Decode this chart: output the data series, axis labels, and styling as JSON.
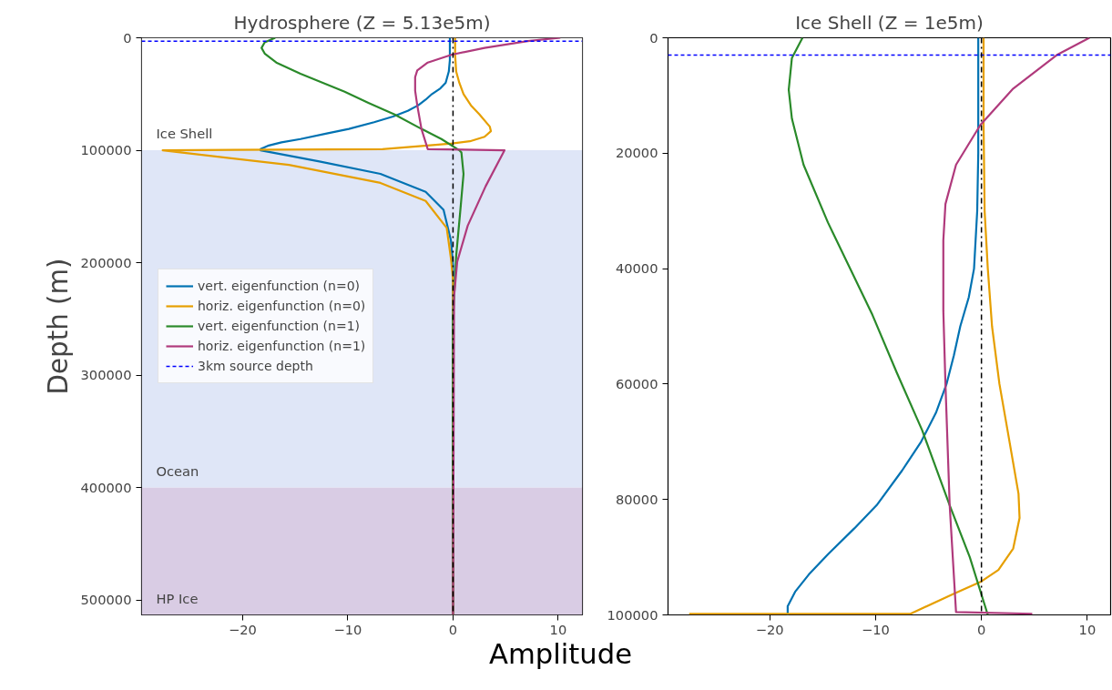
{
  "chart_data": [
    {
      "type": "line",
      "title": "Hydrosphere (Z = 5.13e5m)",
      "xlabel": "Amplitude",
      "ylabel": "Depth (m)",
      "xlim": [
        -29.6,
        12.3
      ],
      "ylim": [
        513000,
        0
      ],
      "xticks": [
        -20,
        -10,
        0,
        10
      ],
      "yticks": [
        0,
        100000,
        200000,
        300000,
        400000,
        500000
      ],
      "grid": false,
      "legend": "center left",
      "series": [
        {
          "name": "vert. eigenfunction (n=0)",
          "color": "#0072b2",
          "x": [
            -0.3,
            -0.3,
            -0.3,
            -0.4,
            -0.7,
            -1.2,
            -2.0,
            -2.6,
            -3.3,
            -4.3,
            -5.7,
            -7.5,
            -9.9,
            -12.0,
            -14.5,
            -16.3,
            -17.6,
            -18.3,
            -18.3,
            -12.7,
            -6.9,
            -2.6,
            -0.9,
            -0.2,
            0,
            0
          ],
          "values": [
            0,
            10000,
            20000,
            30000,
            40000,
            45000,
            50000,
            55000,
            60000,
            65000,
            70000,
            75000,
            81000,
            85000,
            90000,
            93000,
            96000,
            99000,
            100000,
            110000,
            121000,
            137000,
            153000,
            180000,
            202000,
            513000
          ]
        },
        {
          "name": "horiz. eigenfunction (n=0)",
          "color": "#e69f00",
          "x": [
            0.2,
            0.2,
            0.3,
            0.6,
            1.0,
            1.7,
            2.5,
            3.5,
            3.6,
            3.0,
            1.6,
            -0.1,
            -2.7,
            -6.7,
            -27.6,
            -15.6,
            -6.9,
            -2.6,
            -0.6,
            -0.2,
            0,
            0
          ],
          "values": [
            0,
            15000,
            30000,
            40000,
            50000,
            60000,
            68000,
            79000,
            83000,
            88000,
            92000,
            94000,
            96000,
            99000,
            100000,
            113000,
            129000,
            145000,
            169000,
            196000,
            215000,
            513000
          ]
        },
        {
          "name": "vert. eigenfunction (n=1)",
          "color": "#2a8a2a",
          "x": [
            -16.9,
            -17.9,
            -18.2,
            -17.9,
            -16.8,
            -14.5,
            -10.3,
            -8.0,
            -5.6,
            -3.0,
            -1.1,
            0.6,
            0.8,
            1.0,
            0.7,
            0.3,
            0,
            0
          ],
          "values": [
            0,
            4000,
            9000,
            14000,
            22000,
            32000,
            48000,
            58000,
            68000,
            81000,
            90000,
            100000,
            102000,
            121000,
            153000,
            194000,
            250000,
            513000
          ]
        },
        {
          "name": "horiz. eigenfunction (n=1)",
          "color": "#b03a7c",
          "x": [
            10.2,
            7.1,
            3.0,
            -0.1,
            -2.4,
            -3.4,
            -3.6,
            -3.6,
            -3.4,
            -3.0,
            -2.4,
            4.9,
            3.1,
            1.4,
            0.4,
            0.1,
            0
          ],
          "values": [
            0,
            3000,
            9000,
            15000,
            22000,
            29000,
            35000,
            47000,
            60000,
            81000,
            99000,
            100000,
            132000,
            167000,
            199000,
            230000,
            513000
          ]
        }
      ],
      "ref_lines": [
        {
          "axis": "y",
          "value": 3000,
          "label": "3km source depth",
          "color": "#0000ff",
          "line_style": "dashed"
        },
        {
          "axis": "x",
          "value": 0,
          "color": "#000000",
          "line_style": "dashdot"
        }
      ],
      "bands": [
        {
          "axis": "y",
          "from": 0,
          "to": 100000,
          "label": "Ice Shell",
          "color": "#ffffff"
        },
        {
          "axis": "y",
          "from": 100000,
          "to": 400000,
          "label": "Ocean",
          "color": "#dfe6f7"
        },
        {
          "axis": "y",
          "from": 400000,
          "to": 513000,
          "label": "HP Ice",
          "color": "#d9cce4"
        }
      ]
    },
    {
      "type": "line",
      "title": "Ice Shell (Z = 1e5m)",
      "xlim": [
        -29.6,
        12.2
      ],
      "ylim": [
        100000,
        0
      ],
      "xticks": [
        -20,
        -10,
        0,
        10
      ],
      "yticks": [
        0,
        20000,
        40000,
        60000,
        80000,
        100000
      ],
      "grid": false,
      "legend": false,
      "series": [
        {
          "color": "#0072b2",
          "x": [
            -0.3,
            -0.3,
            -0.3,
            -0.4,
            -0.7,
            -1.2,
            -2.0,
            -2.6,
            -3.3,
            -4.3,
            -5.7,
            -7.5,
            -9.9,
            -12.0,
            -14.5,
            -16.3,
            -17.6,
            -18.3,
            -18.3
          ],
          "values": [
            0,
            10000,
            20000,
            30000,
            40000,
            45000,
            50000,
            55000,
            60000,
            65000,
            70000,
            75000,
            81000,
            85000,
            89500,
            93000,
            96000,
            98500,
            100000
          ]
        },
        {
          "color": "#e69f00",
          "x": [
            0.2,
            0.2,
            0.3,
            0.6,
            1.0,
            1.7,
            2.5,
            3.5,
            3.6,
            3.0,
            1.6,
            -0.1,
            -2.7,
            -6.7,
            -27.6
          ],
          "values": [
            0,
            15000,
            30000,
            40000,
            50000,
            60000,
            68400,
            79000,
            83200,
            88500,
            92200,
            94300,
            96400,
            99800,
            99800
          ]
        },
        {
          "color": "#2a8a2a",
          "x": [
            -16.9,
            -17.9,
            -18.2,
            -17.9,
            -16.8,
            -14.5,
            -10.3,
            -8.0,
            -5.6,
            -3.0,
            -1.1,
            0.6
          ],
          "values": [
            0,
            3500,
            9000,
            14000,
            22000,
            32000,
            48000,
            58000,
            68000,
            81000,
            90000,
            100000
          ]
        },
        {
          "color": "#b03a7c",
          "x": [
            10.2,
            7.1,
            3.0,
            -0.1,
            -2.4,
            -3.4,
            -3.6,
            -3.6,
            -3.4,
            -3.0,
            -2.4,
            4.8
          ],
          "values": [
            0,
            3000,
            8800,
            15100,
            22000,
            28800,
            35100,
            47300,
            60000,
            81000,
            99500,
            99800
          ]
        }
      ],
      "ref_lines": [
        {
          "axis": "y",
          "value": 3000,
          "color": "#0000ff",
          "line_style": "dashed"
        },
        {
          "axis": "x",
          "value": 0,
          "color": "#000000",
          "line_style": "dashdot"
        }
      ]
    }
  ]
}
